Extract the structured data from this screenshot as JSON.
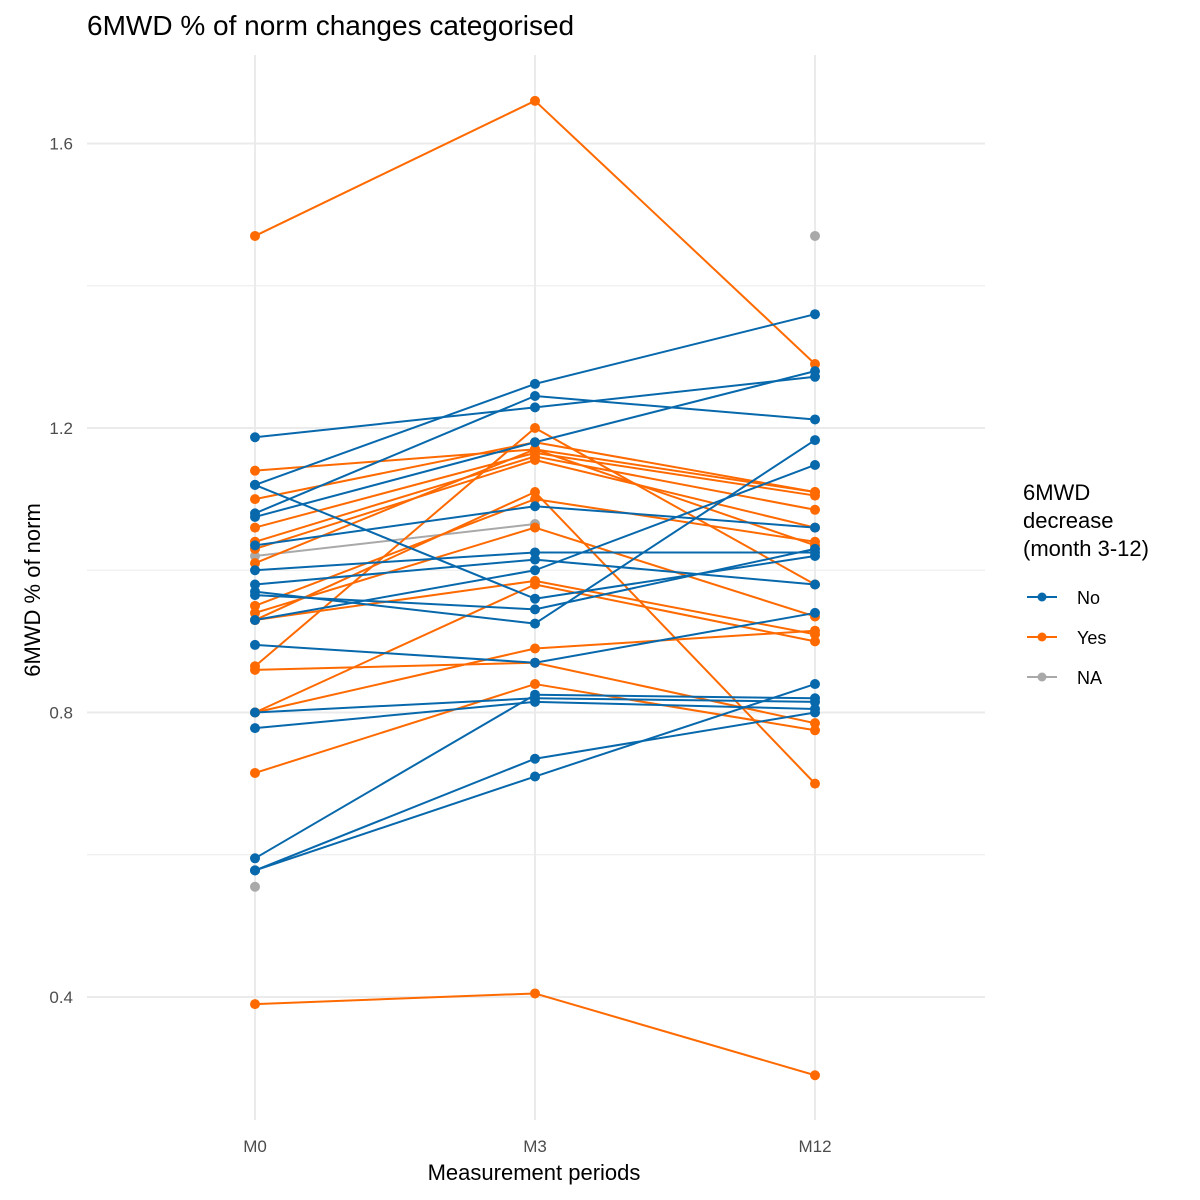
{
  "chart_data": {
    "type": "line",
    "title": "6MWD % of norm changes categorised",
    "xlabel": "Measurement periods",
    "ylabel": "6MWD % of norm",
    "categories": [
      "M0",
      "M3",
      "M12"
    ],
    "ylim": [
      0.27,
      1.72
    ],
    "yticks": [
      0.4,
      0.8,
      1.2,
      1.6
    ],
    "yticks_minor": [
      0.6,
      1.0,
      1.4
    ],
    "grid": true,
    "legend": {
      "title_lines": [
        "6MWD",
        "decrease",
        "(month 3-12)"
      ],
      "placement": "right",
      "entries": [
        {
          "label": "No",
          "color": "#0868AC"
        },
        {
          "label": "Yes",
          "color": "#FF6A00"
        },
        {
          "label": "NA",
          "color": "#A9A9A9"
        }
      ]
    },
    "colors": {
      "No": "#0868AC",
      "Yes": "#FF6A00",
      "NA": "#A9A9A9"
    },
    "series": [
      {
        "group": "Yes",
        "values": [
          1.47,
          1.66,
          1.29
        ]
      },
      {
        "group": "Yes",
        "values": [
          0.39,
          0.405,
          0.29
        ]
      },
      {
        "group": "Yes",
        "values": [
          1.14,
          1.17,
          1.11
        ]
      },
      {
        "group": "Yes",
        "values": [
          1.1,
          1.18,
          1.11
        ]
      },
      {
        "group": "Yes",
        "values": [
          1.06,
          1.165,
          1.105
        ]
      },
      {
        "group": "Yes",
        "values": [
          1.04,
          1.16,
          1.085
        ]
      },
      {
        "group": "Yes",
        "values": [
          1.03,
          1.155,
          1.06
        ]
      },
      {
        "group": "Yes",
        "values": [
          1.01,
          1.17,
          1.035
        ]
      },
      {
        "group": "Yes",
        "values": [
          0.95,
          1.1,
          1.04
        ]
      },
      {
        "group": "Yes",
        "values": [
          0.94,
          1.06,
          0.935
        ]
      },
      {
        "group": "Yes",
        "values": [
          0.93,
          0.985,
          0.91
        ]
      },
      {
        "group": "Yes",
        "values": [
          0.865,
          1.2,
          0.98
        ]
      },
      {
        "group": "Yes",
        "values": [
          0.86,
          0.87,
          0.785
        ]
      },
      {
        "group": "Yes",
        "values": [
          0.8,
          0.98,
          0.9
        ]
      },
      {
        "group": "Yes",
        "values": [
          0.8,
          0.89,
          0.915
        ]
      },
      {
        "group": "Yes",
        "values": [
          0.715,
          0.84,
          0.775
        ]
      },
      {
        "group": "Yes",
        "values": [
          0.93,
          1.11,
          0.7
        ]
      },
      {
        "group": "No",
        "values": [
          1.187,
          1.229,
          1.272
        ]
      },
      {
        "group": "No",
        "values": [
          1.12,
          1.262,
          1.36
        ]
      },
      {
        "group": "No",
        "values": [
          1.08,
          1.245,
          1.212
        ]
      },
      {
        "group": "No",
        "values": [
          1.12,
          0.96,
          1.02
        ]
      },
      {
        "group": "No",
        "values": [
          1.075,
          1.18,
          1.28
        ]
      },
      {
        "group": "No",
        "values": [
          1.035,
          1.09,
          1.06
        ]
      },
      {
        "group": "No",
        "values": [
          1.0,
          1.025,
          1.025
        ]
      },
      {
        "group": "No",
        "values": [
          0.98,
          1.015,
          0.98
        ]
      },
      {
        "group": "No",
        "values": [
          0.965,
          0.945,
          1.03
        ]
      },
      {
        "group": "No",
        "values": [
          0.93,
          1.0,
          1.148
        ]
      },
      {
        "group": "No",
        "values": [
          0.97,
          0.925,
          1.183
        ]
      },
      {
        "group": "No",
        "values": [
          0.8,
          0.82,
          0.815
        ]
      },
      {
        "group": "No",
        "values": [
          0.778,
          0.815,
          0.805
        ]
      },
      {
        "group": "No",
        "values": [
          0.895,
          0.87,
          0.94
        ]
      },
      {
        "group": "No",
        "values": [
          0.595,
          0.825,
          0.82
        ]
      },
      {
        "group": "No",
        "values": [
          0.578,
          0.735,
          0.8
        ]
      },
      {
        "group": "No",
        "values": [
          0.578,
          0.71,
          0.84
        ]
      },
      {
        "group": "NA",
        "values": [
          1.12,
          null,
          1.47
        ]
      },
      {
        "group": "NA",
        "values": [
          1.02,
          1.065,
          null
        ]
      },
      {
        "group": "NA",
        "values": [
          0.555,
          null,
          null
        ]
      }
    ]
  }
}
